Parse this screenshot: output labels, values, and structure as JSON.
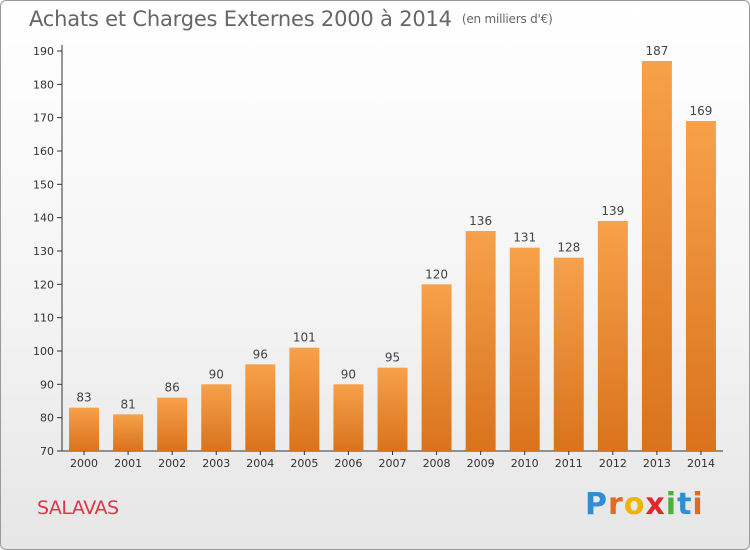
{
  "title": "Achats et Charges Externes 2000 à 2014",
  "unit_note": "(en milliers d'€)",
  "commune": "SALAVAS",
  "logo_text": "Proxiti",
  "colors": {
    "bar_light": "#f7a14a",
    "bar_dark": "#d9731c",
    "commune": "#e0344a",
    "title": "#666666"
  },
  "chart_data": {
    "type": "bar",
    "title": "Achats et Charges Externes 2000 à 2014",
    "subtitle": "(en milliers d'€)",
    "xlabel": "",
    "ylabel": "",
    "ylim": [
      70,
      190
    ],
    "y_ticks": [
      70,
      80,
      90,
      100,
      110,
      120,
      130,
      140,
      150,
      160,
      170,
      180,
      190
    ],
    "grid": false,
    "categories": [
      "2000",
      "2001",
      "2002",
      "2003",
      "2004",
      "2005",
      "2006",
      "2007",
      "2008",
      "2009",
      "2010",
      "2011",
      "2012",
      "2013",
      "2014"
    ],
    "values": [
      83,
      81,
      86,
      90,
      96,
      101,
      90,
      95,
      120,
      136,
      131,
      128,
      139,
      187,
      169
    ]
  }
}
